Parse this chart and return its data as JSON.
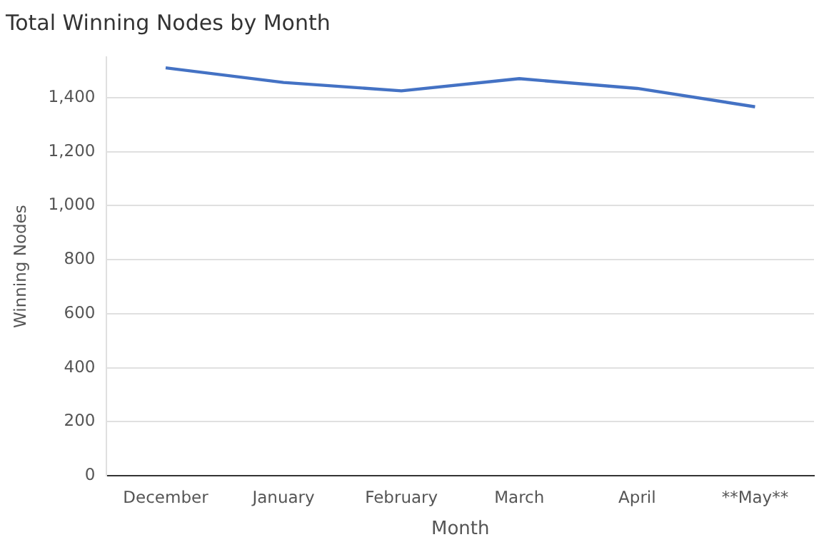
{
  "chart_data": {
    "type": "line",
    "title": "Total Winning Nodes by Month",
    "xlabel": "Month",
    "ylabel": "Winning Nodes",
    "categories": [
      "December",
      "January",
      "February",
      "March",
      "April",
      "**May**"
    ],
    "series": [
      {
        "color": "#4472c4",
        "values": [
          1510,
          1456,
          1425,
          1470,
          1434,
          1366
        ]
      }
    ],
    "ylim": [
      0,
      1550
    ],
    "yticks": [
      {
        "value": 0,
        "label": "0"
      },
      {
        "value": 200,
        "label": "200"
      },
      {
        "value": 400,
        "label": "400"
      },
      {
        "value": 600,
        "label": "600"
      },
      {
        "value": 800,
        "label": "800"
      },
      {
        "value": 1000,
        "label": "1,000"
      },
      {
        "value": 1200,
        "label": "1,200"
      },
      {
        "value": 1400,
        "label": "1,400"
      }
    ],
    "grid": "y",
    "legend": false,
    "marker": "none",
    "line_style": "solid"
  }
}
